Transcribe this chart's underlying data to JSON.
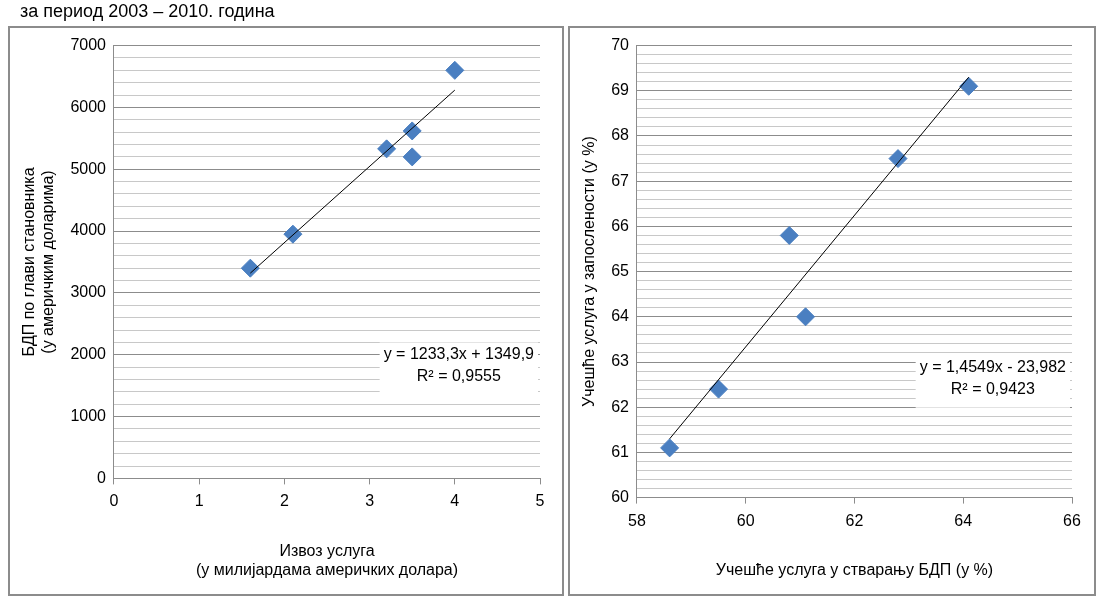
{
  "chart_data": [
    {
      "type": "scatter",
      "title": "за период 2003 – 2010. година",
      "xlabel": "Извоз услуга\n(у милијардама америчких долара)",
      "ylabel": "БДП по глави становника\n(у америчким доларима)",
      "xlim": [
        0,
        5
      ],
      "xticks": [
        0,
        1,
        2,
        3,
        4,
        5
      ],
      "ylim": [
        0,
        7000
      ],
      "yticks": [
        0,
        {
          "value": 200,
          "label": null
        },
        {
          "value": 400,
          "label": null
        },
        {
          "value": 600,
          "label": null
        },
        {
          "value": 800,
          "label": null
        },
        1000,
        {
          "value": 1200,
          "label": null
        },
        {
          "value": 1400,
          "label": null
        },
        {
          "value": 1600,
          "label": null
        },
        {
          "value": 1800,
          "label": null
        },
        2000,
        {
          "value": 2200,
          "label": null
        },
        {
          "value": 2400,
          "label": null
        },
        {
          "value": 2600,
          "label": null
        },
        {
          "value": 2800,
          "label": null
        },
        3000,
        {
          "value": 3200,
          "label": null
        },
        {
          "value": 3400,
          "label": null
        },
        {
          "value": 3600,
          "label": null
        },
        {
          "value": 3800,
          "label": null
        },
        4000,
        {
          "value": 4200,
          "label": null
        },
        {
          "value": 4400,
          "label": null
        },
        {
          "value": 4600,
          "label": null
        },
        {
          "value": 4800,
          "label": null
        },
        5000,
        {
          "value": 5200,
          "label": null
        },
        {
          "value": 5400,
          "label": null
        },
        {
          "value": 5600,
          "label": null
        },
        {
          "value": 5800,
          "label": null
        },
        6000,
        {
          "value": 6200,
          "label": null
        },
        {
          "value": 6400,
          "label": null
        },
        {
          "value": 6600,
          "label": null
        },
        {
          "value": 6800,
          "label": null
        },
        7000
      ],
      "grid": "y",
      "legend": false,
      "marker": "diamond",
      "series": [
        {
          "type": "scatter",
          "color": "#4a7fc1",
          "x": [
            1.6,
            2.1,
            3.2,
            3.5,
            3.5,
            4.0
          ],
          "values": [
            3400,
            3950,
            5330,
            5620,
            5200,
            6600
          ]
        },
        {
          "type": "line",
          "color": "#000000",
          "marker": "none",
          "x": [
            1.6,
            4.0
          ],
          "values": [
            3320,
            6280
          ]
        }
      ],
      "annotations": [
        "y = 1233,3x + 1349,9",
        "R² = 0,9555"
      ]
    },
    {
      "type": "scatter",
      "xlabel": "Учешће услуга у стварању БДП (у %)",
      "ylabel": "Учешће услуга у запослености (у %)",
      "xlim": [
        58,
        66
      ],
      "xticks": [
        58,
        60,
        62,
        64,
        66
      ],
      "ylim": [
        60,
        70
      ],
      "yticks": [
        60,
        {
          "value": 60.2,
          "label": null
        },
        {
          "value": 60.4,
          "label": null
        },
        {
          "value": 60.6,
          "label": null
        },
        {
          "value": 60.8,
          "label": null
        },
        61,
        {
          "value": 61.2,
          "label": null
        },
        {
          "value": 61.4,
          "label": null
        },
        {
          "value": 61.6,
          "label": null
        },
        {
          "value": 61.8,
          "label": null
        },
        62,
        {
          "value": 62.2,
          "label": null
        },
        {
          "value": 62.4,
          "label": null
        },
        {
          "value": 62.6,
          "label": null
        },
        {
          "value": 62.8,
          "label": null
        },
        63,
        {
          "value": 63.2,
          "label": null
        },
        {
          "value": 63.4,
          "label": null
        },
        {
          "value": 63.6,
          "label": null
        },
        {
          "value": 63.8,
          "label": null
        },
        64,
        {
          "value": 64.2,
          "label": null
        },
        {
          "value": 64.4,
          "label": null
        },
        {
          "value": 64.6,
          "label": null
        },
        {
          "value": 64.8,
          "label": null
        },
        65,
        {
          "value": 65.2,
          "label": null
        },
        {
          "value": 65.4,
          "label": null
        },
        {
          "value": 65.6,
          "label": null
        },
        {
          "value": 65.8,
          "label": null
        },
        66,
        {
          "value": 66.2,
          "label": null
        },
        {
          "value": 66.4,
          "label": null
        },
        {
          "value": 66.6,
          "label": null
        },
        {
          "value": 66.8,
          "label": null
        },
        67,
        {
          "value": 67.2,
          "label": null
        },
        {
          "value": 67.4,
          "label": null
        },
        {
          "value": 67.6,
          "label": null
        },
        {
          "value": 67.8,
          "label": null
        },
        68,
        {
          "value": 68.2,
          "label": null
        },
        {
          "value": 68.4,
          "label": null
        },
        {
          "value": 68.6,
          "label": null
        },
        {
          "value": 68.8,
          "label": null
        },
        69,
        {
          "value": 69.2,
          "label": null
        },
        {
          "value": 69.4,
          "label": null
        },
        {
          "value": 69.6,
          "label": null
        },
        {
          "value": 69.8,
          "label": null
        },
        70
      ],
      "grid": "y",
      "legend": false,
      "marker": "diamond",
      "series": [
        {
          "type": "scatter",
          "color": "#4a7fc1",
          "x": [
            58.6,
            59.5,
            60.8,
            61.1,
            62.8,
            64.1
          ],
          "values": [
            61.1,
            62.4,
            65.8,
            64.0,
            67.5,
            69.1
          ]
        },
        {
          "type": "line",
          "color": "#000000",
          "marker": "none",
          "x": [
            58.6,
            64.1
          ],
          "values": [
            61.3,
            69.3
          ]
        }
      ],
      "annotations": [
        "y = 1,4549x - 23,982",
        "R² = 0,9423"
      ]
    }
  ]
}
